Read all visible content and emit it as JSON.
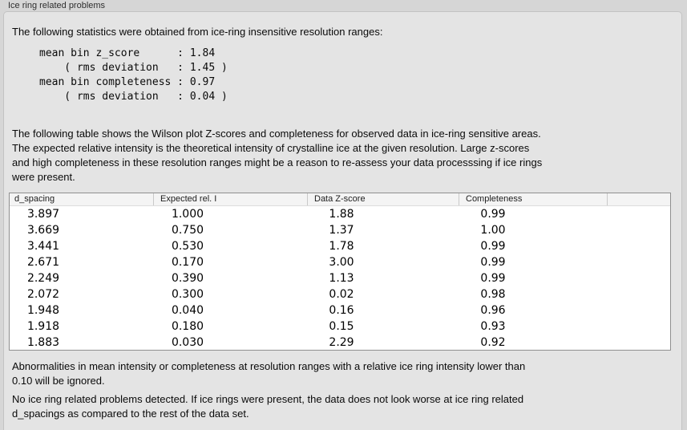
{
  "group": {
    "title": "Ice ring related problems"
  },
  "intro": "The following statistics were obtained from ice-ring insensitive resolution ranges:",
  "stats_block": {
    "lines": [
      "mean bin z_score      : 1.84",
      "    ( rms deviation   : 1.45 )",
      "mean bin completeness : 0.97",
      "    ( rms deviation   : 0.04 )"
    ],
    "mean_bin_z_score": "1.84",
    "z_score_rms_deviation": "1.45",
    "mean_bin_completeness": "0.97",
    "completeness_rms_deviation": "0.04"
  },
  "description_lines": [
    "The following table shows the Wilson plot Z-scores and completeness for observed data in ice-ring sensitive areas.",
    "The expected relative intensity is the theoretical intensity of crystalline ice at the given resolution. Large z-scores",
    "and high completeness in these resolution ranges might be a reason to re-assess your data processsing if ice rings",
    "were present."
  ],
  "table": {
    "columns": [
      "d_spacing",
      "Expected rel. I",
      "Data Z-score",
      "Completeness"
    ],
    "rows": [
      [
        "3.897",
        "1.000",
        "1.88",
        "0.99"
      ],
      [
        "3.669",
        "0.750",
        "1.37",
        "1.00"
      ],
      [
        "3.441",
        "0.530",
        "1.78",
        "0.99"
      ],
      [
        "2.671",
        "0.170",
        "3.00",
        "0.99"
      ],
      [
        "2.249",
        "0.390",
        "1.13",
        "0.99"
      ],
      [
        "2.072",
        "0.300",
        "0.02",
        "0.98"
      ],
      [
        "1.948",
        "0.040",
        "0.16",
        "0.96"
      ],
      [
        "1.918",
        "0.180",
        "0.15",
        "0.93"
      ],
      [
        "1.883",
        "0.030",
        "2.29",
        "0.92"
      ]
    ]
  },
  "note_lines": [
    "Abnormalities in mean intensity or completeness at resolution ranges with a relative ice ring intensity lower than",
    "0.10 will be ignored."
  ],
  "conclusion_lines": [
    "No ice ring related problems detected. If ice rings were present, the data does not look worse at ice ring related",
    "d_spacings as compared to the rest of the data set."
  ],
  "colors": {
    "page_background": "#d6d6d6",
    "panel_background": "#e4e4e4",
    "panel_border": "#c3c3c3",
    "table_background": "#ffffff",
    "table_border": "#8f8f8f",
    "table_header_background": "#f4f4f4",
    "text": "#0a0a0a"
  }
}
